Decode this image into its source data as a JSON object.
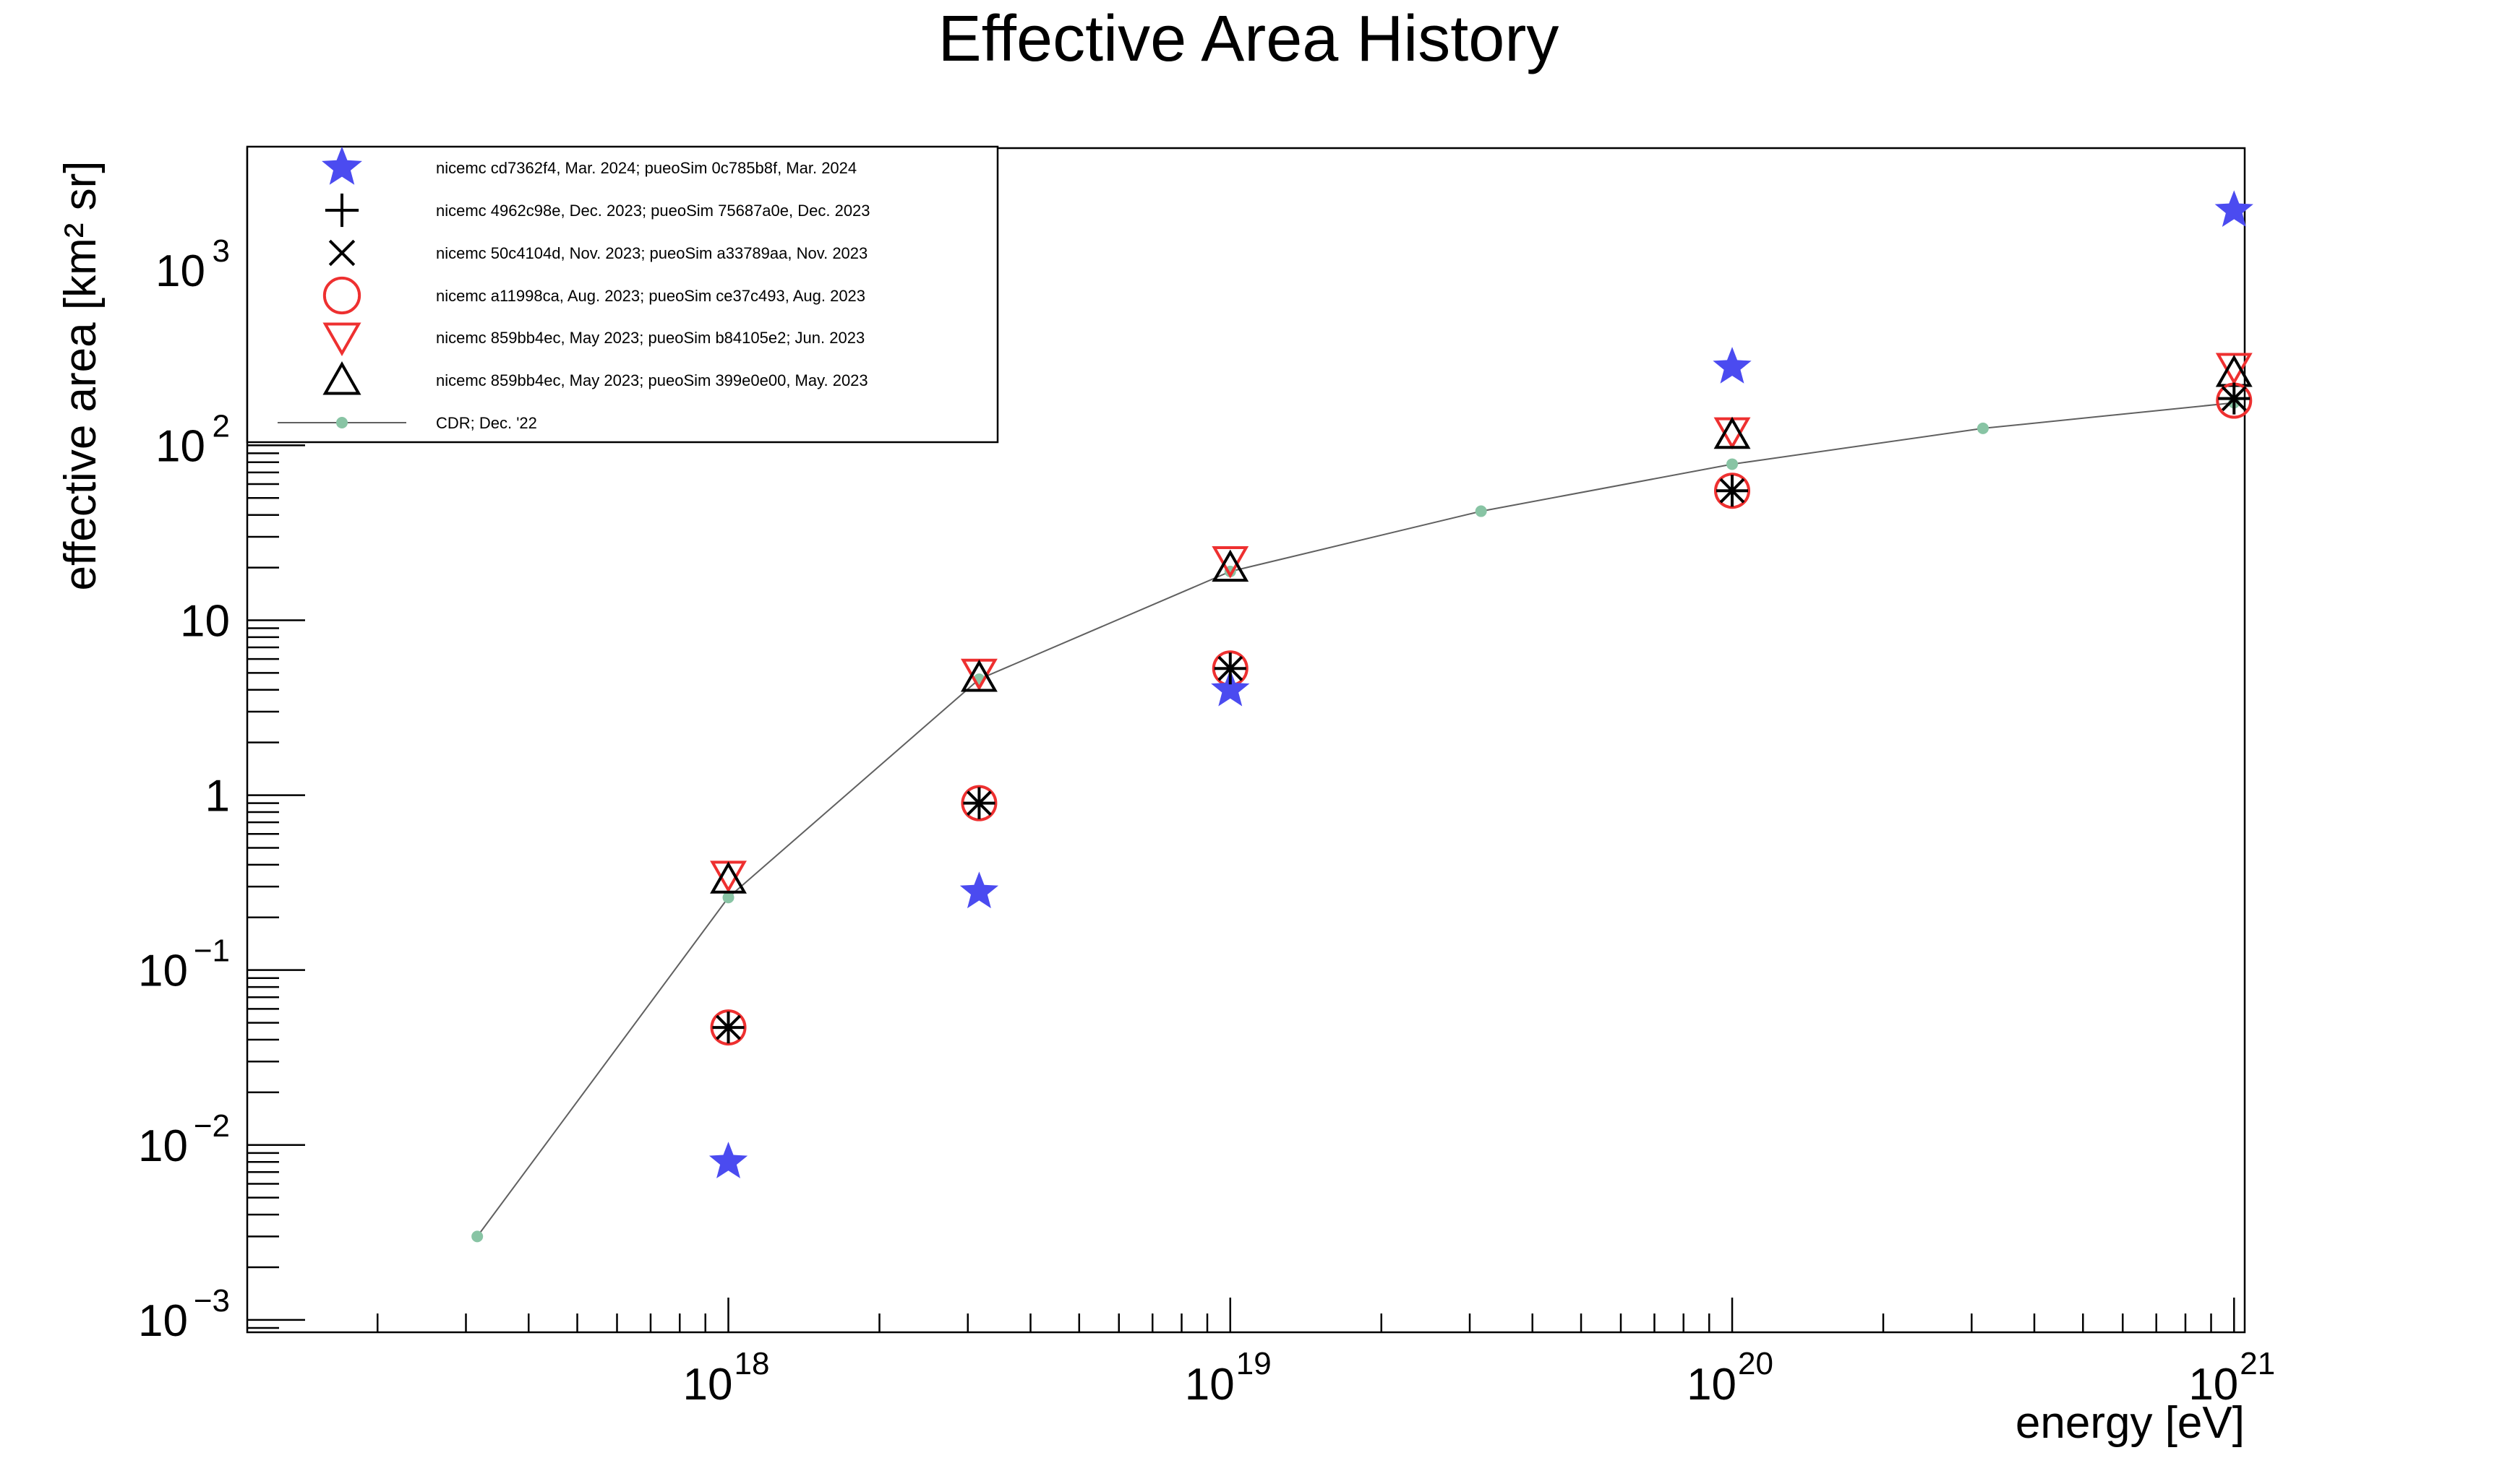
{
  "chart_data": {
    "type": "scatter",
    "title": "Effective Area History",
    "xlabel": "energy [eV]",
    "ylabel": "effective area [km² sr]",
    "x_scale": "log",
    "y_scale": "log",
    "xlim": [
      1.1e+17,
      1.05e+21
    ],
    "ylim": [
      0.00085,
      5000
    ],
    "grid": false,
    "legend_position": "top-left",
    "x_ticks": [
      {
        "value": 1e+18,
        "base": "10",
        "exp": "18"
      },
      {
        "value": 1e+19,
        "base": "10",
        "exp": "19"
      },
      {
        "value": 1e+20,
        "base": "10",
        "exp": "20"
      },
      {
        "value": 1e+21,
        "base": "10",
        "exp": "21"
      }
    ],
    "y_ticks": [
      {
        "value": 0.001,
        "base": "10",
        "exp": "−3"
      },
      {
        "value": 0.01,
        "base": "10",
        "exp": "−2"
      },
      {
        "value": 0.1,
        "base": "10",
        "exp": "−1"
      },
      {
        "value": 1,
        "base": "1",
        "exp": ""
      },
      {
        "value": 10,
        "base": "10",
        "exp": ""
      },
      {
        "value": 100,
        "base": "10",
        "exp": "2"
      },
      {
        "value": 1000,
        "base": "10",
        "exp": "3"
      }
    ],
    "series": [
      {
        "name": "nicemc cd7362f4, Mar. 2024; pueoSim 0c785b8f, Mar. 2024",
        "marker": "star",
        "color": "#4b4bf0",
        "x": [
          1e+18,
          3.16e+18,
          1e+19,
          1e+20,
          1e+21
        ],
        "y": [
          0.008,
          0.28,
          4.0,
          280,
          2200
        ]
      },
      {
        "name": "nicemc 4962c98e, Dec. 2023; pueoSim 75687a0e, Dec. 2023",
        "marker": "plus",
        "color": "#000000",
        "x": [
          1e+18,
          3.16e+18,
          1e+19,
          1e+20,
          1e+21
        ],
        "y": [
          0.047,
          0.9,
          5.3,
          55,
          185
        ]
      },
      {
        "name": "nicemc 50c4104d, Nov. 2023; pueoSim a33789aa, Nov. 2023",
        "marker": "cross",
        "color": "#000000",
        "x": [
          1e+18,
          3.16e+18,
          1e+19,
          1e+20,
          1e+21
        ],
        "y": [
          0.047,
          0.9,
          5.3,
          55,
          185
        ]
      },
      {
        "name": "nicemc a11998ca, Aug. 2023; pueoSim ce37c493, Aug. 2023",
        "marker": "circle",
        "color": "#ee3030",
        "x": [
          1e+18,
          3.16e+18,
          1e+19,
          1e+20,
          1e+21
        ],
        "y": [
          0.047,
          0.9,
          5.3,
          55,
          180
        ]
      },
      {
        "name": "nicemc 859bb4ec, May  2023; pueoSim b84105e2; Jun. 2023",
        "marker": "triangle-down",
        "color": "#ee3030",
        "x": [
          1e+18,
          3.16e+18,
          1e+19,
          1e+20,
          1e+21
        ],
        "y": [
          0.35,
          5.0,
          22,
          120,
          280
        ]
      },
      {
        "name": "nicemc 859bb4ec, May  2023; pueoSim 399e0e00, May. 2023",
        "marker": "triangle-up",
        "color": "#000000",
        "x": [
          1e+18,
          3.16e+18,
          1e+19,
          1e+20,
          1e+21
        ],
        "y": [
          0.33,
          4.7,
          20,
          115,
          260
        ]
      },
      {
        "name": "CDR; Dec. '22",
        "marker": "dot-line",
        "color": "#88c4a4",
        "line_color": "#606060",
        "x": [
          3.16e+17,
          1e+18,
          3.16e+18,
          1e+19,
          3.16e+19,
          1e+20,
          3.16e+20,
          1e+21
        ],
        "y": [
          0.003,
          0.26,
          4.6,
          19,
          42,
          78,
          125,
          175
        ]
      }
    ]
  }
}
